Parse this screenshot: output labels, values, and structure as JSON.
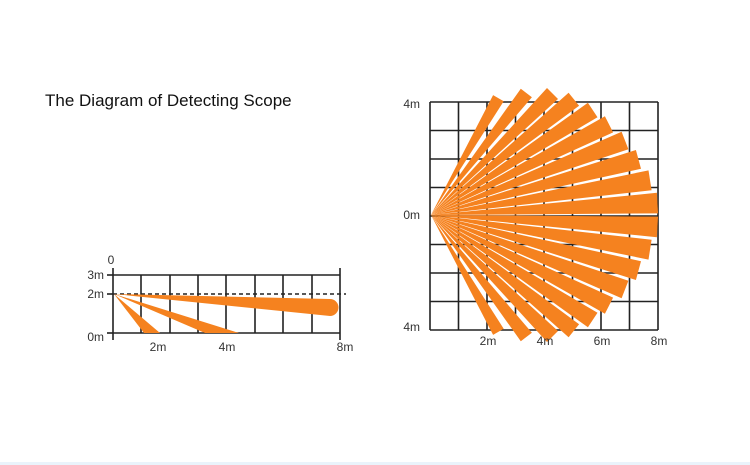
{
  "title": "The Diagram of Detecting Scope",
  "side_view": {
    "origin_label": "0",
    "y_labels": [
      "3m",
      "2m",
      "0m"
    ],
    "x_labels": [
      "2m",
      "4m",
      "8m"
    ]
  },
  "top_view": {
    "y_labels": [
      "4m",
      "0m",
      "4m"
    ],
    "x_labels": [
      "2m",
      "4m",
      "6m",
      "8m"
    ]
  },
  "colors": {
    "beam": "#f5821f",
    "grid": "#222222",
    "label": "#333333"
  }
}
